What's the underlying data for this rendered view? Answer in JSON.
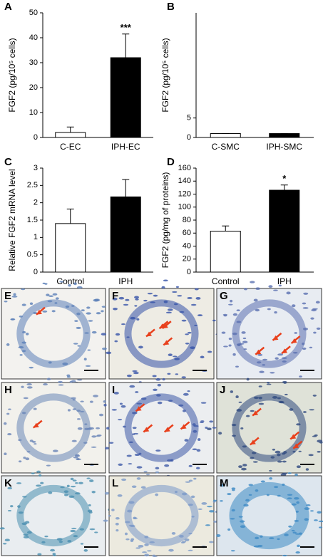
{
  "chart_data": [
    {
      "type": "bar",
      "panel": "A",
      "ylabel": "FGF2 (pg/10⁵ cells)",
      "categories": [
        "C-EC",
        "IPH-EC"
      ],
      "values": [
        2,
        32
      ],
      "errors": [
        2.2,
        9.5
      ],
      "colors": [
        "#ffffff",
        "#000000"
      ],
      "annotations": [
        null,
        "***"
      ],
      "ylim": [
        0,
        50
      ],
      "yticks": [
        0,
        10,
        20,
        30,
        40,
        50
      ]
    },
    {
      "type": "bar",
      "panel": "B",
      "ylabel": "FGF2 (pg/10⁵ cells)",
      "categories": [
        "C-SMC",
        "IPH-SMC"
      ],
      "values": [
        1,
        1
      ],
      "errors": [
        0,
        0
      ],
      "colors": [
        "#ffffff",
        "#000000"
      ],
      "annotations": [
        null,
        null
      ],
      "ylim": [
        0,
        32
      ],
      "yticks": [
        0,
        5
      ]
    },
    {
      "type": "bar",
      "panel": "C",
      "ylabel": "Relative FGF2 mRNA level",
      "categories": [
        "Control",
        "IPH"
      ],
      "values": [
        1.4,
        2.17
      ],
      "errors": [
        0.42,
        0.5
      ],
      "colors": [
        "#ffffff",
        "#000000"
      ],
      "annotations": [
        null,
        null
      ],
      "ylim": [
        0,
        3
      ],
      "yticks": [
        0,
        0.5,
        1,
        1.5,
        2,
        2.5,
        3
      ]
    },
    {
      "type": "bar",
      "panel": "D",
      "ylabel": "FGF2 (pg/mg of proteins)",
      "categories": [
        "Control",
        "IPH"
      ],
      "values": [
        63,
        126
      ],
      "errors": [
        8,
        8
      ],
      "colors": [
        "#ffffff",
        "#000000"
      ],
      "annotations": [
        null,
        "*"
      ],
      "ylim": [
        0,
        160
      ],
      "yticks": [
        0,
        20,
        40,
        60,
        80,
        100,
        120,
        140,
        160
      ]
    }
  ],
  "micrographs": [
    "E",
    "F",
    "G",
    "H",
    "I",
    "J",
    "K",
    "L",
    "M"
  ]
}
